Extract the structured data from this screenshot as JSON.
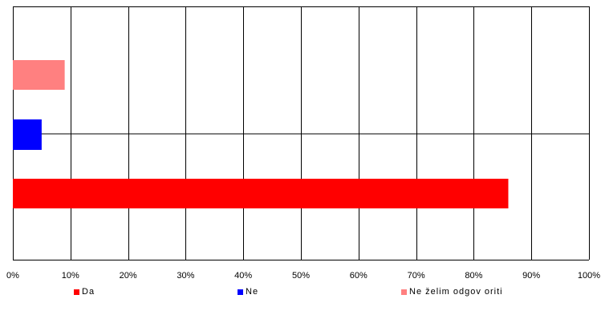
{
  "chart_data": {
    "type": "bar",
    "orientation": "horizontal",
    "xlim": [
      0,
      100
    ],
    "x_tick_labels": [
      "0%",
      "10%",
      "20%",
      "30%",
      "40%",
      "50%",
      "60%",
      "70%",
      "80%",
      "90%",
      "100%"
    ],
    "grid": true,
    "legend_position": "bottom",
    "series": [
      {
        "name": "Da",
        "value": 86,
        "color": "#ff0000"
      },
      {
        "name": "Ne",
        "value": 5,
        "color": "#0000ff"
      },
      {
        "name": "Ne želim odgov oriti",
        "value": 9,
        "color": "#ff8080"
      }
    ]
  }
}
